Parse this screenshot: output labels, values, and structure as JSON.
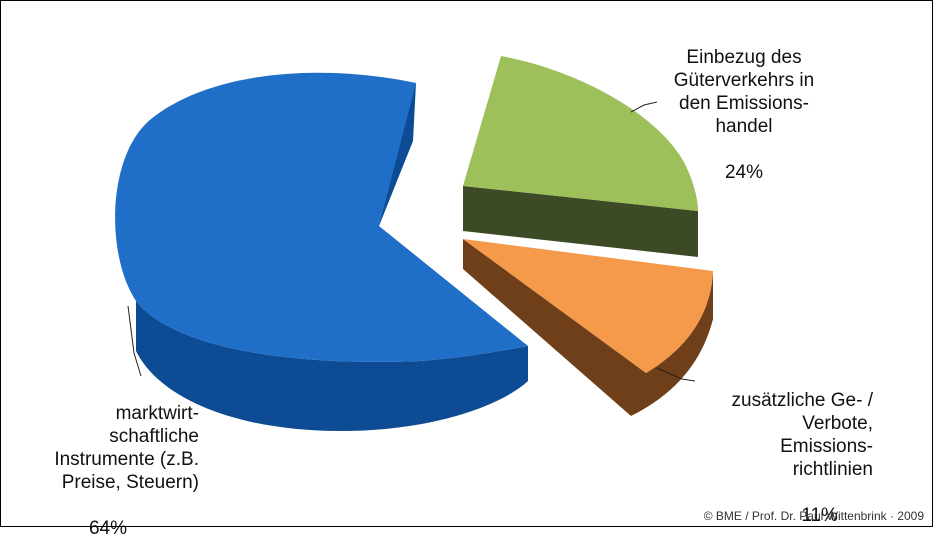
{
  "chart_data": {
    "type": "pie",
    "style": "3d-exploded",
    "title": "",
    "slices": [
      {
        "label": "marktwirt-\nschaftliche\nInstrumente (z.B.\nPreise, Steuern)",
        "percent_label": "64%",
        "value": 64,
        "color": "#1f6fc8",
        "side_color": "#0d4c94"
      },
      {
        "label": "Einbezug des\nGüterverkehrs in\nden Emissions-\nhandel",
        "percent_label": "24%",
        "value": 24,
        "color": "#9ec05a",
        "side_color": "#3c4a26"
      },
      {
        "label": "zusätzliche Ge- /\nVerbote,\nEmissions-\nrichtlinien",
        "percent_label": "11%",
        "value": 11,
        "color": "#f5994a",
        "side_color": "#6e3f18"
      }
    ]
  },
  "credit": "© BME / Prof. Dr. Paul Wittenbrink · 2009"
}
